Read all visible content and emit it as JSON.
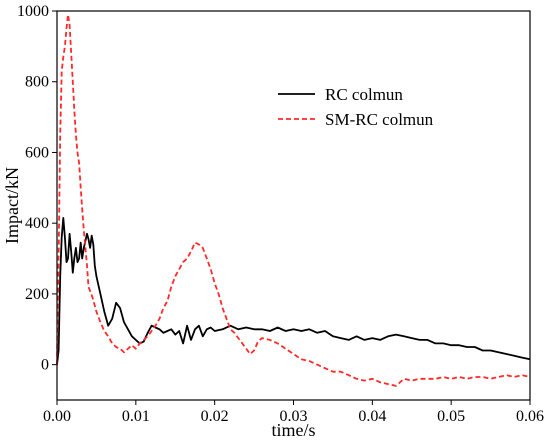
{
  "chart_data": {
    "type": "line",
    "xlabel": "time/s",
    "ylabel": "Impact/kN",
    "xlim": [
      0,
      0.06
    ],
    "ylim": [
      -100,
      1000
    ],
    "x_ticks": [
      0,
      0.01,
      0.02,
      0.03,
      0.04,
      0.05,
      0.06
    ],
    "x_tick_labels": [
      "0.00",
      "0.01",
      "0.02",
      "0.03",
      "0.04",
      "0.05",
      "0.06"
    ],
    "y_ticks": [
      0,
      200,
      400,
      600,
      800,
      1000
    ],
    "y_tick_labels": [
      "0",
      "200",
      "400",
      "600",
      "800",
      "1000"
    ],
    "grid": false,
    "legend_position": "top-right",
    "series": [
      {
        "name": "RC colmun",
        "color": "#000000",
        "style": "solid",
        "points": [
          [
            0.0,
            0
          ],
          [
            0.0002,
            40
          ],
          [
            0.0004,
            250
          ],
          [
            0.0006,
            360
          ],
          [
            0.0008,
            415
          ],
          [
            0.001,
            360
          ],
          [
            0.0012,
            290
          ],
          [
            0.0014,
            300
          ],
          [
            0.0016,
            370
          ],
          [
            0.0018,
            320
          ],
          [
            0.002,
            260
          ],
          [
            0.0022,
            300
          ],
          [
            0.0024,
            330
          ],
          [
            0.0026,
            290
          ],
          [
            0.0028,
            300
          ],
          [
            0.003,
            345
          ],
          [
            0.0032,
            300
          ],
          [
            0.0034,
            330
          ],
          [
            0.0036,
            350
          ],
          [
            0.0038,
            370
          ],
          [
            0.004,
            355
          ],
          [
            0.0042,
            330
          ],
          [
            0.0044,
            365
          ],
          [
            0.0046,
            340
          ],
          [
            0.0048,
            280
          ],
          [
            0.005,
            250
          ],
          [
            0.0055,
            200
          ],
          [
            0.006,
            150
          ],
          [
            0.0065,
            110
          ],
          [
            0.007,
            130
          ],
          [
            0.0075,
            175
          ],
          [
            0.008,
            160
          ],
          [
            0.0085,
            120
          ],
          [
            0.009,
            100
          ],
          [
            0.0095,
            80
          ],
          [
            0.01,
            70
          ],
          [
            0.0105,
            60
          ],
          [
            0.011,
            65
          ],
          [
            0.0115,
            90
          ],
          [
            0.012,
            110
          ],
          [
            0.0125,
            105
          ],
          [
            0.013,
            100
          ],
          [
            0.0135,
            90
          ],
          [
            0.014,
            95
          ],
          [
            0.0145,
            100
          ],
          [
            0.015,
            85
          ],
          [
            0.0155,
            95
          ],
          [
            0.016,
            60
          ],
          [
            0.0165,
            110
          ],
          [
            0.017,
            70
          ],
          [
            0.0175,
            100
          ],
          [
            0.018,
            110
          ],
          [
            0.0185,
            80
          ],
          [
            0.019,
            100
          ],
          [
            0.0195,
            105
          ],
          [
            0.02,
            95
          ],
          [
            0.021,
            100
          ],
          [
            0.022,
            110
          ],
          [
            0.023,
            100
          ],
          [
            0.024,
            105
          ],
          [
            0.025,
            100
          ],
          [
            0.026,
            100
          ],
          [
            0.027,
            95
          ],
          [
            0.028,
            105
          ],
          [
            0.029,
            95
          ],
          [
            0.03,
            100
          ],
          [
            0.031,
            95
          ],
          [
            0.032,
            100
          ],
          [
            0.033,
            90
          ],
          [
            0.034,
            95
          ],
          [
            0.035,
            80
          ],
          [
            0.036,
            75
          ],
          [
            0.037,
            70
          ],
          [
            0.038,
            80
          ],
          [
            0.039,
            70
          ],
          [
            0.04,
            75
          ],
          [
            0.041,
            70
          ],
          [
            0.042,
            80
          ],
          [
            0.043,
            85
          ],
          [
            0.044,
            80
          ],
          [
            0.045,
            75
          ],
          [
            0.046,
            70
          ],
          [
            0.047,
            70
          ],
          [
            0.048,
            60
          ],
          [
            0.049,
            60
          ],
          [
            0.05,
            55
          ],
          [
            0.051,
            55
          ],
          [
            0.052,
            50
          ],
          [
            0.053,
            50
          ],
          [
            0.054,
            40
          ],
          [
            0.055,
            40
          ],
          [
            0.056,
            35
          ],
          [
            0.057,
            30
          ],
          [
            0.058,
            25
          ],
          [
            0.059,
            20
          ],
          [
            0.06,
            15
          ]
        ]
      },
      {
        "name": "SM-RC colmun",
        "color": "#ff2a2a",
        "style": "dashed",
        "points": [
          [
            0.0,
            0
          ],
          [
            0.0002,
            300
          ],
          [
            0.0004,
            650
          ],
          [
            0.0006,
            830
          ],
          [
            0.0008,
            870
          ],
          [
            0.001,
            900
          ],
          [
            0.0012,
            950
          ],
          [
            0.0014,
            990
          ],
          [
            0.0016,
            960
          ],
          [
            0.0018,
            880
          ],
          [
            0.002,
            800
          ],
          [
            0.0022,
            720
          ],
          [
            0.0024,
            650
          ],
          [
            0.0026,
            600
          ],
          [
            0.0028,
            570
          ],
          [
            0.003,
            500
          ],
          [
            0.0032,
            440
          ],
          [
            0.0034,
            380
          ],
          [
            0.0036,
            330
          ],
          [
            0.0038,
            280
          ],
          [
            0.004,
            220
          ],
          [
            0.0045,
            190
          ],
          [
            0.005,
            150
          ],
          [
            0.0055,
            120
          ],
          [
            0.006,
            95
          ],
          [
            0.0065,
            80
          ],
          [
            0.007,
            60
          ],
          [
            0.0075,
            50
          ],
          [
            0.008,
            45
          ],
          [
            0.0085,
            35
          ],
          [
            0.009,
            45
          ],
          [
            0.0095,
            55
          ],
          [
            0.01,
            45
          ],
          [
            0.0105,
            60
          ],
          [
            0.011,
            70
          ],
          [
            0.0115,
            80
          ],
          [
            0.012,
            95
          ],
          [
            0.0125,
            110
          ],
          [
            0.013,
            130
          ],
          [
            0.0135,
            160
          ],
          [
            0.014,
            180
          ],
          [
            0.0145,
            220
          ],
          [
            0.015,
            250
          ],
          [
            0.0155,
            270
          ],
          [
            0.016,
            290
          ],
          [
            0.0165,
            300
          ],
          [
            0.017,
            320
          ],
          [
            0.0175,
            345
          ],
          [
            0.018,
            340
          ],
          [
            0.0185,
            330
          ],
          [
            0.019,
            300
          ],
          [
            0.0195,
            270
          ],
          [
            0.02,
            230
          ],
          [
            0.0205,
            200
          ],
          [
            0.021,
            160
          ],
          [
            0.0215,
            130
          ],
          [
            0.022,
            100
          ],
          [
            0.0225,
            90
          ],
          [
            0.023,
            75
          ],
          [
            0.0235,
            60
          ],
          [
            0.024,
            45
          ],
          [
            0.0245,
            30
          ],
          [
            0.025,
            40
          ],
          [
            0.0255,
            65
          ],
          [
            0.026,
            75
          ],
          [
            0.027,
            70
          ],
          [
            0.028,
            60
          ],
          [
            0.029,
            45
          ],
          [
            0.03,
            30
          ],
          [
            0.031,
            15
          ],
          [
            0.032,
            10
          ],
          [
            0.033,
            0
          ],
          [
            0.034,
            -10
          ],
          [
            0.035,
            -20
          ],
          [
            0.036,
            -20
          ],
          [
            0.037,
            -30
          ],
          [
            0.038,
            -40
          ],
          [
            0.039,
            -45
          ],
          [
            0.04,
            -40
          ],
          [
            0.041,
            -50
          ],
          [
            0.042,
            -55
          ],
          [
            0.043,
            -60
          ],
          [
            0.044,
            -40
          ],
          [
            0.045,
            -45
          ],
          [
            0.046,
            -40
          ],
          [
            0.047,
            -40
          ],
          [
            0.048,
            -40
          ],
          [
            0.049,
            -35
          ],
          [
            0.05,
            -40
          ],
          [
            0.051,
            -35
          ],
          [
            0.052,
            -40
          ],
          [
            0.053,
            -35
          ],
          [
            0.054,
            -35
          ],
          [
            0.055,
            -40
          ],
          [
            0.056,
            -35
          ],
          [
            0.057,
            -30
          ],
          [
            0.058,
            -35
          ],
          [
            0.059,
            -30
          ],
          [
            0.06,
            -35
          ]
        ]
      }
    ]
  }
}
